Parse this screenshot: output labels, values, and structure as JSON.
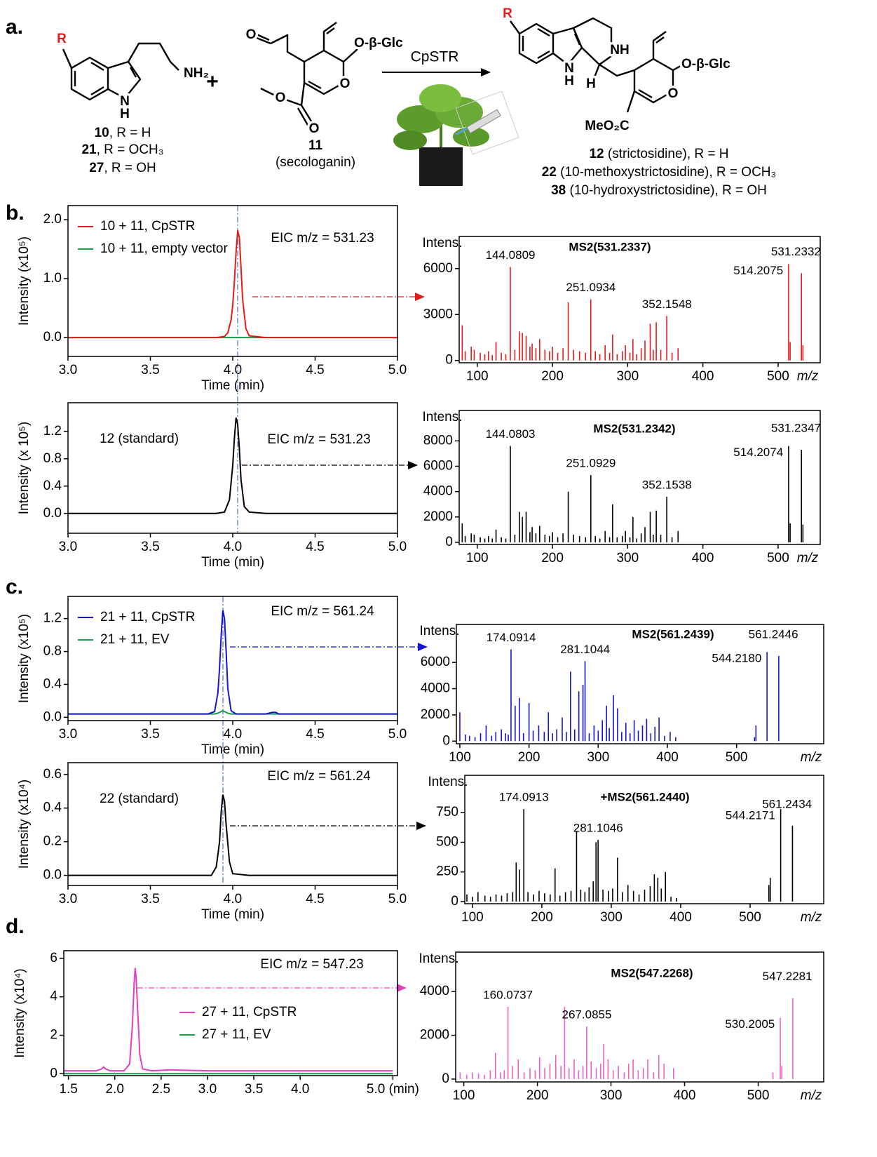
{
  "panel_labels": [
    "a.",
    "b.",
    "c.",
    "d."
  ],
  "scheme": {
    "reactant1": {
      "atoms": [
        "R",
        "NH₂",
        "N",
        "H"
      ],
      "labels": [
        {
          "num": "10",
          "text": ", R = H"
        },
        {
          "num": "21",
          "text": ", R = OCH₃"
        },
        {
          "num": "27",
          "text": ", R = OH"
        }
      ]
    },
    "plus": "+",
    "reactant2": {
      "atoms": [
        "O",
        "O-β-Glc",
        "O",
        "O",
        "O"
      ],
      "number": "11",
      "name": "(secologanin)"
    },
    "enzyme": "CpSTR",
    "product": {
      "atoms": [
        "R",
        "NH",
        "N",
        "H",
        "H",
        "O-β-Glc",
        "O",
        "MeO₂C"
      ],
      "labels": [
        {
          "num": "12",
          "text": " (strictosidine), R = H"
        },
        {
          "num": "22",
          "text": " (10-methoxystrictosidine), R = OCH₃"
        },
        {
          "num": "38",
          "text": " (10-hydroxystrictosidine), R = OH"
        }
      ]
    }
  },
  "chart_data": [
    {
      "type": "line",
      "title": "EIC m/z = 531.23",
      "x_label": "Time (min)",
      "y_label": "Intensity (x10⁵)",
      "x": [
        3.0,
        3.5,
        3.9,
        3.95,
        3.97,
        3.99,
        4.0,
        4.01,
        4.02,
        4.03,
        4.04,
        4.05,
        4.06,
        4.08,
        4.1,
        4.2,
        4.5,
        5.0
      ],
      "series": [
        {
          "name": "10 + 11, CpSTR",
          "color": "#e41a1c",
          "values": [
            0,
            0,
            0,
            0.02,
            0.08,
            0.3,
            0.55,
            0.95,
            1.45,
            1.82,
            1.7,
            1.2,
            0.65,
            0.15,
            0.03,
            0,
            0,
            0
          ]
        },
        {
          "name": "10 + 11, empty vector",
          "color": "#1a9850",
          "values": [
            0,
            0,
            0,
            0,
            0,
            0,
            0,
            0,
            0,
            0,
            0,
            0,
            0,
            0,
            0,
            0,
            0,
            0
          ]
        }
      ],
      "xlim": [
        3.0,
        5.0
      ],
      "ylim": [
        -0.32,
        2.24
      ],
      "xticks": [
        {
          "value": 3,
          "label": "3.0"
        },
        3.5,
        {
          "value": 4,
          "label": "4.0"
        },
        4.5,
        {
          "value": 5,
          "label": "5.0"
        }
      ],
      "yticks": [
        {
          "value": 0,
          "label": "0.0"
        },
        {
          "value": 1,
          "label": "1.0"
        },
        {
          "value": 2,
          "label": "2.0"
        }
      ],
      "legend": "upper left"
    },
    {
      "type": "bar",
      "title": "MS2(531.2337)",
      "x_label": "m/z",
      "y_label": "Intens.",
      "color": "#e41a1c",
      "x": [
        80,
        84,
        92,
        96,
        104,
        110,
        115,
        120,
        125,
        132,
        138,
        144,
        150,
        156,
        160,
        165,
        170,
        173,
        178,
        183,
        190,
        196,
        200,
        207,
        214,
        221,
        228,
        236,
        244,
        251,
        257,
        263,
        270,
        276,
        280,
        286,
        293,
        297,
        303,
        307,
        312,
        318,
        323,
        330,
        334,
        338,
        344,
        352,
        359,
        367,
        514,
        516,
        531,
        533
      ],
      "values": [
        2300,
        600,
        900,
        700,
        500,
        400,
        600,
        350,
        1200,
        500,
        400,
        6100,
        700,
        1900,
        1800,
        1600,
        900,
        1100,
        800,
        1400,
        700,
        600,
        900,
        500,
        800,
        3800,
        700,
        600,
        500,
        4000,
        600,
        400,
        1000,
        500,
        1700,
        400,
        600,
        1000,
        500,
        1400,
        400,
        800,
        1300,
        2400,
        700,
        2500,
        700,
        2900,
        500,
        800,
        6300,
        1200,
        5700,
        1000
      ],
      "peak_labels": [
        144.0809,
        251.0934,
        352.1548,
        514.2075,
        531.2332
      ],
      "xlim": [
        76,
        556
      ],
      "ylim": [
        -150,
        8100
      ],
      "xticks": [
        100,
        200,
        300,
        400,
        500
      ],
      "yticks": [
        0,
        3000,
        6000
      ]
    },
    {
      "type": "line",
      "title": "EIC m/z = 531.23",
      "x_label": "Time (min)",
      "y_label": "Intensity (x 10⁵)",
      "annotation": "12 (standard)",
      "x": [
        3.0,
        3.5,
        3.9,
        3.95,
        3.98,
        4.0,
        4.01,
        4.02,
        4.03,
        4.04,
        4.05,
        4.07,
        4.1,
        4.2,
        4.5,
        5.0
      ],
      "color": "#000000",
      "values": [
        0,
        0,
        0,
        0.02,
        0.2,
        0.7,
        1.1,
        1.4,
        1.3,
        0.95,
        0.5,
        0.1,
        0.02,
        0,
        0,
        0
      ],
      "xlim": [
        3.0,
        5.0
      ],
      "ylim": [
        -0.29,
        1.62
      ],
      "xticks": [
        {
          "value": 3,
          "label": "3.0"
        },
        3.5,
        {
          "value": 4,
          "label": "4.0"
        },
        4.5,
        {
          "value": 5,
          "label": "5.0"
        }
      ],
      "yticks": [
        {
          "value": 0,
          "label": "0.0"
        },
        0.4,
        0.8,
        1.2
      ]
    },
    {
      "type": "bar",
      "title": "MS2(531.2342)",
      "x_label": "m/z",
      "y_label": "Intens.",
      "color": "#000000",
      "x": [
        80,
        84,
        92,
        96,
        104,
        110,
        115,
        120,
        125,
        132,
        138,
        144,
        150,
        156,
        160,
        165,
        170,
        173,
        178,
        183,
        190,
        196,
        200,
        207,
        214,
        221,
        228,
        236,
        244,
        251,
        257,
        263,
        270,
        276,
        280,
        286,
        293,
        297,
        303,
        307,
        312,
        318,
        323,
        330,
        334,
        338,
        344,
        352,
        359,
        367,
        514,
        516,
        531,
        533
      ],
      "values": [
        1500,
        500,
        700,
        600,
        400,
        300,
        500,
        300,
        1000,
        400,
        300,
        7600,
        600,
        2400,
        2000,
        2400,
        800,
        1200,
        700,
        1300,
        600,
        500,
        800,
        400,
        700,
        4000,
        600,
        500,
        400,
        5300,
        500,
        300,
        900,
        400,
        3000,
        400,
        500,
        900,
        400,
        2000,
        300,
        700,
        1200,
        2400,
        600,
        2500,
        600,
        3600,
        400,
        900,
        7600,
        1500,
        7300,
        1400
      ],
      "peak_labels": [
        144.0803,
        251.0929,
        352.1538,
        514.2074,
        531.2347
      ],
      "xlim": [
        76,
        556
      ],
      "ylim": [
        -170,
        10400
      ],
      "xticks": [
        100,
        200,
        300,
        400,
        500
      ],
      "yticks": [
        0,
        2000,
        4000,
        6000,
        8000
      ]
    },
    {
      "type": "line",
      "title": "EIC m/z = 561.24",
      "x_label": "Time (min)",
      "y_label": "Intensity (x10⁵)",
      "x": [
        3.0,
        3.5,
        3.85,
        3.89,
        3.91,
        3.92,
        3.93,
        3.94,
        3.95,
        3.96,
        3.97,
        3.99,
        4.02,
        4.2,
        4.24,
        4.26,
        4.28,
        4.5,
        5.0
      ],
      "series": [
        {
          "name": "21 + 11, CpSTR",
          "color": "#1414d0",
          "values": [
            0.04,
            0.04,
            0.04,
            0.07,
            0.3,
            0.6,
            1.0,
            1.3,
            1.2,
            0.8,
            0.35,
            0.08,
            0.04,
            0.04,
            0.06,
            0.06,
            0.04,
            0.04,
            0.04
          ]
        },
        {
          "name": "21 + 11, EV",
          "color": "#1a9850",
          "values": [
            0.04,
            0.04,
            0.04,
            0.04,
            0.05,
            0.06,
            0.07,
            0.08,
            0.07,
            0.06,
            0.05,
            0.04,
            0.04,
            0.04,
            0.04,
            0.04,
            0.04,
            0.04,
            0.04
          ]
        }
      ],
      "xlim": [
        3.0,
        5.0
      ],
      "ylim": [
        -0.04,
        1.47
      ],
      "xticks": [
        {
          "value": 3,
          "label": "3.0"
        },
        3.5,
        {
          "value": 4,
          "label": "4.0"
        },
        4.5,
        {
          "value": 5,
          "label": "5.0"
        }
      ],
      "yticks": [
        {
          "value": 0,
          "label": "0.0"
        },
        0.4,
        0.8,
        1.2
      ],
      "legend": "upper left"
    },
    {
      "type": "bar",
      "title": "MS2(561.2439)",
      "x_label": "m/z",
      "y_label": "Intens.",
      "color": "#1414d0",
      "x": [
        100,
        108,
        114,
        122,
        130,
        138,
        146,
        152,
        160,
        166,
        170,
        174,
        180,
        186,
        192,
        200,
        206,
        214,
        222,
        228,
        234,
        240,
        248,
        254,
        260,
        266,
        272,
        278,
        281,
        287,
        294,
        300,
        306,
        312,
        316,
        322,
        328,
        334,
        340,
        346,
        352,
        358,
        364,
        370,
        376,
        382,
        388,
        396,
        404,
        412,
        526,
        528,
        544,
        561
      ],
      "values": [
        2200,
        500,
        400,
        300,
        600,
        1200,
        400,
        700,
        900,
        600,
        500,
        7000,
        2700,
        3300,
        600,
        2900,
        800,
        1200,
        700,
        2200,
        600,
        900,
        1800,
        700,
        5300,
        900,
        3800,
        4300,
        6100,
        600,
        1200,
        800,
        1600,
        2700,
        1000,
        3500,
        2500,
        700,
        1400,
        600,
        1600,
        800,
        1200,
        1700,
        600,
        1100,
        1800,
        400,
        700,
        300,
        300,
        1200,
        6800,
        6500
      ],
      "peak_labels": [
        174.0914,
        281.1044,
        {
          "value": 544.218,
          "label": "544.2180"
        },
        561.2446
      ],
      "xlim": [
        95,
        626
      ],
      "ylim": [
        -200,
        8900
      ],
      "xticks": [
        100,
        200,
        300,
        400,
        500
      ],
      "yticks": [
        0,
        2000,
        4000,
        6000
      ]
    },
    {
      "type": "line",
      "title": "EIC m/z = 561.24",
      "x_label": "Time (min)",
      "y_label": "Intensity (x10⁴)",
      "annotation": "22 (standard)",
      "x": [
        3.0,
        3.5,
        3.87,
        3.9,
        3.92,
        3.93,
        3.94,
        3.95,
        3.96,
        3.98,
        4.0,
        4.1,
        4.5,
        5.0
      ],
      "color": "#000000",
      "values": [
        0,
        0,
        0,
        0.05,
        0.2,
        0.38,
        0.48,
        0.44,
        0.3,
        0.08,
        0.01,
        0,
        0,
        0
      ],
      "xlim": [
        3.0,
        5.0
      ],
      "ylim": [
        -0.06,
        0.67
      ],
      "xticks": [
        {
          "value": 3,
          "label": "3.0"
        },
        3.5,
        {
          "value": 4,
          "label": "4.0"
        },
        4.5,
        {
          "value": 5,
          "label": "5.0"
        }
      ],
      "yticks": [
        {
          "value": 0,
          "label": "0.0"
        },
        0.2,
        0.4,
        0.6
      ]
    },
    {
      "type": "bar",
      "title": "+MS2(561.2440)",
      "x_label": "m/z",
      "y_label": "Intens.",
      "color": "#000000",
      "x": [
        92,
        100,
        108,
        118,
        126,
        134,
        142,
        150,
        158,
        163,
        168,
        174,
        180,
        188,
        196,
        204,
        212,
        219,
        226,
        234,
        242,
        250,
        256,
        262,
        268,
        274,
        278,
        281,
        288,
        296,
        302,
        309,
        316,
        324,
        332,
        340,
        348,
        356,
        362,
        367,
        372,
        378,
        386,
        394,
        527,
        529,
        544,
        561
      ],
      "values": [
        60,
        40,
        80,
        50,
        40,
        60,
        50,
        70,
        80,
        330,
        270,
        780,
        80,
        60,
        90,
        70,
        60,
        280,
        50,
        80,
        90,
        590,
        100,
        80,
        120,
        170,
        500,
        520,
        100,
        90,
        110,
        370,
        80,
        140,
        90,
        60,
        100,
        130,
        230,
        200,
        110,
        250,
        40,
        30,
        140,
        200,
        780,
        640
      ],
      "peak_labels": [
        174.0913,
        281.1046,
        544.2171,
        561.2434
      ],
      "xlim": [
        89,
        606
      ],
      "ylim": [
        -18,
        1065
      ],
      "xticks": [
        100,
        200,
        300,
        400,
        500
      ],
      "yticks": [
        0,
        250,
        500,
        750
      ]
    },
    {
      "type": "line",
      "title": "EIC m/z = 547.23",
      "y_label": "Intensity (x10⁴)",
      "x": [
        1.45,
        1.8,
        1.86,
        1.88,
        1.9,
        1.95,
        2.1,
        2.16,
        2.19,
        2.21,
        2.22,
        2.23,
        2.25,
        2.27,
        2.3,
        2.4,
        2.6,
        3.0,
        3.5,
        4.0,
        5.0
      ],
      "series": [
        {
          "name": "27 + 11, CpSTR",
          "color": "#e040c0",
          "values": [
            0.15,
            0.15,
            0.25,
            0.35,
            0.25,
            0.15,
            0.15,
            0.5,
            2.5,
            4.8,
            5.5,
            5.0,
            3.0,
            1.0,
            0.25,
            0.15,
            0.2,
            0.15,
            0.15,
            0.15,
            0.15
          ]
        },
        {
          "name": "27 + 11, EV",
          "color": "#1a9850",
          "values": [
            0,
            0,
            0,
            0,
            0,
            0,
            0,
            0,
            0,
            0,
            0,
            0,
            0,
            0,
            0,
            0,
            0,
            0,
            0,
            0,
            0
          ]
        }
      ],
      "xlim": [
        1.45,
        5.05
      ],
      "ylim": [
        -0.1,
        6.4
      ],
      "xticks": [
        1.5,
        {
          "value": 2,
          "label": "2.0"
        },
        2.5,
        {
          "value": 3,
          "label": "3.0"
        },
        3.5,
        {
          "value": 4,
          "label": "4.0"
        },
        {
          "value": 5,
          "label": "5.0 (min)"
        }
      ],
      "yticks": [
        0,
        2,
        4,
        6
      ],
      "legend": "center"
    },
    {
      "type": "bar",
      "title": "MS2(547.2268)",
      "x_label": "m/z",
      "y_label": "Intens.",
      "color": "#e860c8",
      "x": [
        95,
        104,
        112,
        120,
        128,
        136,
        143,
        150,
        155,
        160,
        166,
        174,
        182,
        190,
        197,
        203,
        210,
        217,
        225,
        232,
        237,
        243,
        250,
        256,
        262,
        267,
        273,
        280,
        286,
        290,
        296,
        303,
        310,
        318,
        324,
        330,
        337,
        344,
        350,
        358,
        365,
        372,
        385,
        520,
        530,
        532,
        547
      ],
      "values": [
        300,
        200,
        300,
        250,
        200,
        400,
        1200,
        300,
        400,
        3300,
        600,
        900,
        300,
        500,
        400,
        1000,
        500,
        700,
        1100,
        600,
        3300,
        500,
        900,
        400,
        600,
        2400,
        800,
        500,
        700,
        1600,
        900,
        400,
        600,
        300,
        700,
        900,
        400,
        500,
        900,
        300,
        1100,
        700,
        500,
        300,
        2800,
        600,
        3700
      ],
      "peak_labels": [
        160.0737,
        267.0855,
        530.2005,
        547.2281
      ],
      "xlim": [
        89,
        589
      ],
      "ylim": [
        -130,
        5800
      ],
      "xticks": [
        100,
        200,
        300,
        400,
        500
      ],
      "yticks": [
        0,
        2000,
        4000
      ]
    }
  ]
}
